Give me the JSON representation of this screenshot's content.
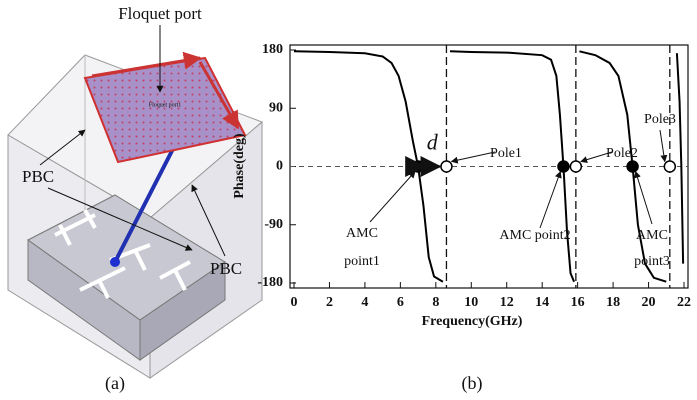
{
  "diagram": {
    "port_label": "Floquet port",
    "port_face_label": "Floquet port1",
    "pbc_left": "PBC",
    "pbc_right": "PBC",
    "caption": "(a)"
  },
  "chart_data": {
    "type": "line",
    "caption": "(b)",
    "xlabel": "Frequency(GHz)",
    "ylabel": "Phase(deg)",
    "color": "#000000",
    "x": [
      0,
      2,
      4,
      5.0,
      5.5,
      5.9,
      6.3,
      6.7,
      7.0,
      7.3,
      7.6,
      7.9,
      8.4,
      8.5,
      8.8,
      10,
      12,
      14,
      14.5,
      14.8,
      15.0,
      15.2,
      15.4,
      15.6,
      15.8,
      15.9,
      16.1,
      17,
      17.8,
      18.3,
      18.8,
      19.1,
      19.4,
      19.8,
      20.3,
      21.0,
      21.3,
      21.6,
      21.75,
      21.85,
      21.95
    ],
    "values": [
      178,
      177,
      175,
      170,
      160,
      140,
      100,
      40,
      0,
      -60,
      -140,
      -170,
      -178,
      null,
      178,
      177,
      176,
      172,
      165,
      140,
      80,
      0,
      -100,
      -165,
      -178,
      null,
      178,
      172,
      160,
      140,
      80,
      0,
      -90,
      -150,
      -172,
      -178,
      null,
      175,
      100,
      0,
      -150
    ],
    "xlim": [
      0,
      22
    ],
    "xticks": [
      0,
      2,
      4,
      6,
      8,
      10,
      12,
      14,
      16,
      18,
      20,
      22
    ],
    "ylim": [
      -180,
      180
    ],
    "yticks": [
      180,
      90,
      0,
      -90,
      -180
    ],
    "points": [
      {
        "x": 7.0,
        "y": 0,
        "style": "filled",
        "label": [
          "AMC",
          "point1"
        ]
      },
      {
        "x": 8.6,
        "y": 0,
        "style": "open",
        "label": [
          "Pole1"
        ]
      },
      {
        "x": 15.2,
        "y": 0,
        "style": "filled",
        "label": [
          "AMC point2"
        ]
      },
      {
        "x": 15.9,
        "y": 0,
        "style": "open",
        "label": [
          "Pole2"
        ]
      },
      {
        "x": 19.1,
        "y": 0,
        "style": "filled",
        "label": [
          "AMC",
          "point3"
        ]
      },
      {
        "x": 21.2,
        "y": 0,
        "style": "open",
        "label": [
          "Pole3"
        ]
      }
    ],
    "distance_label": "d"
  }
}
